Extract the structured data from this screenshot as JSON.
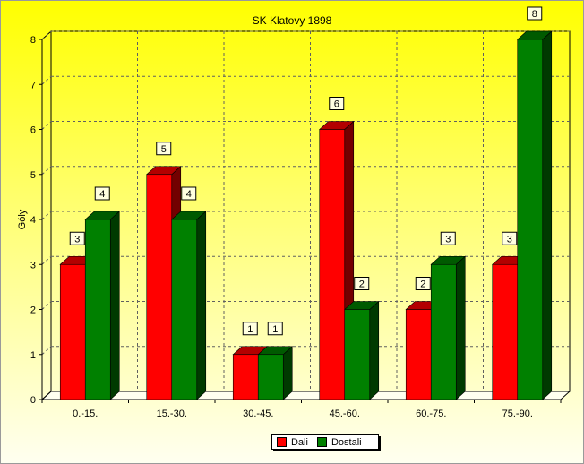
{
  "chart_data": {
    "type": "bar",
    "title": "SK Klatovy 1898",
    "xlabel": "",
    "ylabel": "Góly",
    "ylim": [
      0,
      8
    ],
    "yticks": [
      0,
      1,
      2,
      3,
      4,
      5,
      6,
      7,
      8
    ],
    "grid": true,
    "style_3d": true,
    "legend_position": "bottom-center",
    "categories": [
      "0.-15.",
      "15.-30.",
      "30.-45.",
      "45.-60.",
      "60.-75.",
      "75.-90."
    ],
    "series": [
      {
        "name": "Dali",
        "color": "#ff0000",
        "values": [
          3,
          5,
          1,
          6,
          2,
          3
        ]
      },
      {
        "name": "Dostali",
        "color": "#008000",
        "values": [
          4,
          4,
          1,
          2,
          3,
          8
        ]
      }
    ]
  }
}
